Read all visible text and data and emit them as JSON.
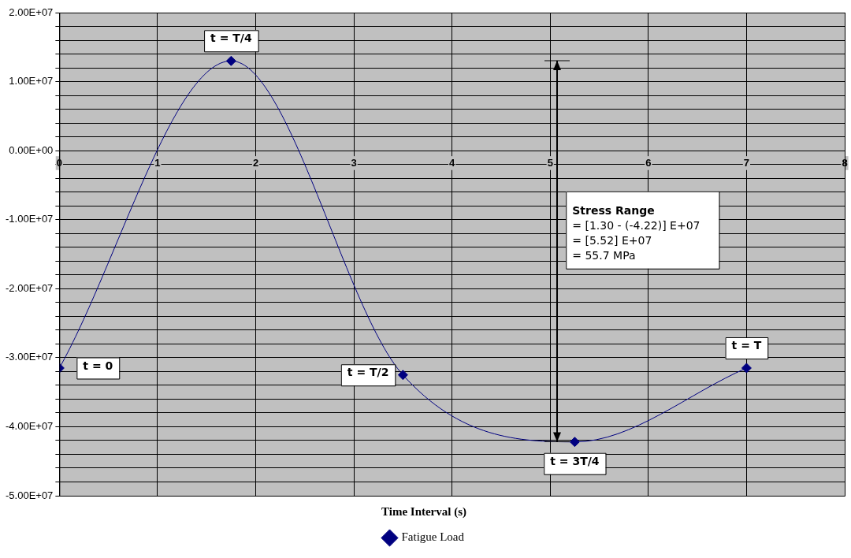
{
  "chart_data": {
    "type": "line",
    "xlabel": "Time Interval (s)",
    "x": [
      0,
      1.75,
      3.5,
      5.25,
      7
    ],
    "series": [
      {
        "name": "Fatigue Load",
        "color": "#000080",
        "values": [
          -31500000,
          13000000,
          -32500000,
          -42200000,
          -31500000
        ]
      }
    ],
    "xlim": [
      0,
      8
    ],
    "xticks": [
      0,
      1,
      2,
      3,
      4,
      5,
      6,
      7,
      8
    ],
    "ylim": [
      -50000000,
      20000000
    ],
    "yticks": [
      {
        "value": -50000000,
        "label": "-5.00E+07"
      },
      {
        "value": -48000000,
        "label": null
      },
      {
        "value": -46000000,
        "label": null
      },
      {
        "value": -44000000,
        "label": null
      },
      {
        "value": -42000000,
        "label": null
      },
      {
        "value": -40000000,
        "label": "-4.00E+07"
      },
      {
        "value": -38000000,
        "label": null
      },
      {
        "value": -36000000,
        "label": null
      },
      {
        "value": -34000000,
        "label": null
      },
      {
        "value": -32000000,
        "label": null
      },
      {
        "value": -30000000,
        "label": "-3.00E+07"
      },
      {
        "value": -28000000,
        "label": null
      },
      {
        "value": -26000000,
        "label": null
      },
      {
        "value": -24000000,
        "label": null
      },
      {
        "value": -22000000,
        "label": null
      },
      {
        "value": -20000000,
        "label": "-2.00E+07"
      },
      {
        "value": -18000000,
        "label": null
      },
      {
        "value": -16000000,
        "label": null
      },
      {
        "value": -14000000,
        "label": null
      },
      {
        "value": -12000000,
        "label": null
      },
      {
        "value": -10000000,
        "label": "-1.00E+07"
      },
      {
        "value": -8000000,
        "label": null
      },
      {
        "value": -6000000,
        "label": null
      },
      {
        "value": -4000000,
        "label": null
      },
      {
        "value": -2000000,
        "label": null
      },
      {
        "value": 0,
        "label": "0.00E+00"
      },
      {
        "value": 2000000,
        "label": null
      },
      {
        "value": 4000000,
        "label": null
      },
      {
        "value": 6000000,
        "label": null
      },
      {
        "value": 8000000,
        "label": null
      },
      {
        "value": 10000000,
        "label": "1.00E+07"
      },
      {
        "value": 12000000,
        "label": null
      },
      {
        "value": 14000000,
        "label": null
      },
      {
        "value": 16000000,
        "label": null
      },
      {
        "value": 18000000,
        "label": null
      },
      {
        "value": 20000000,
        "label": "2.00E+07"
      }
    ],
    "grid": true,
    "legend": "bottom",
    "marker": "diamond",
    "line_style": "solid",
    "annotations": [
      {
        "text": "t = 0",
        "x": 0,
        "y": -31500000
      },
      {
        "text": "t = T/4",
        "x": 1.75,
        "y": 13000000
      },
      {
        "text": "t = T/2",
        "x": 3.5,
        "y": -32500000
      },
      {
        "text": "t = 3T/4",
        "x": 5.25,
        "y": -42200000
      },
      {
        "text": "t = T",
        "x": 7,
        "y": -31500000
      },
      "Stress Range\n= [1.30 - (-4.22)] E+07\n= [5.52] E+07\n= 55.7 MPa"
    ]
  }
}
